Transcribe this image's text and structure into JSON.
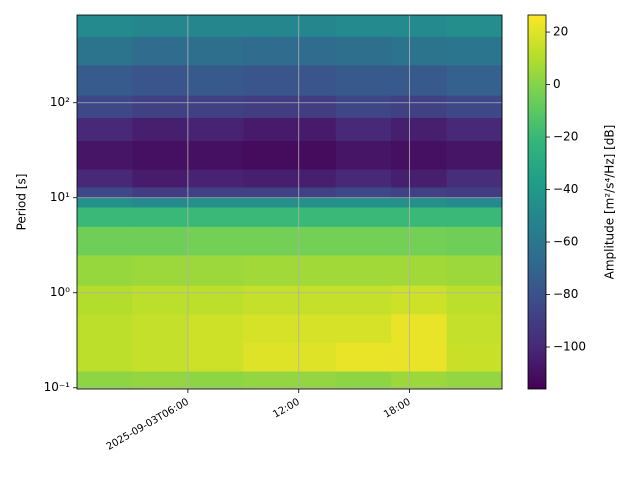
{
  "chart_data": {
    "type": "heatmap",
    "ylabel": "Period [s]",
    "colorbar_label": "Amplitude [m²/s⁴/Hz] [dB]",
    "x_bins": [
      "2025-09-03T00:00",
      "2025-09-03T03:00",
      "2025-09-03T06:00",
      "2025-09-03T09:00",
      "2025-09-03T12:00",
      "2025-09-03T14:00",
      "2025-09-03T17:00",
      "2025-09-03T20:00",
      "2025-09-03T23:00"
    ],
    "y_bins": [
      0.097,
      0.15,
      0.3,
      0.6,
      1.2,
      2.5,
      5,
      8,
      10,
      13,
      20,
      40,
      70,
      120,
      250,
      500,
      838
    ],
    "values": [
      [
        2,
        3,
        2,
        3,
        3,
        2,
        5,
        3
      ],
      [
        12,
        14,
        16,
        20,
        20,
        22,
        22,
        15
      ],
      [
        12,
        14,
        16,
        18,
        18,
        18,
        22,
        14
      ],
      [
        10,
        12,
        12,
        14,
        14,
        14,
        16,
        12
      ],
      [
        4,
        5,
        5,
        6,
        6,
        6,
        6,
        5
      ],
      [
        -5,
        -5,
        -4,
        -4,
        -4,
        -4,
        -4,
        -5
      ],
      [
        -20,
        -20,
        -20,
        -20,
        -20,
        -20,
        -20,
        -20
      ],
      [
        -45,
        -48,
        -45,
        -45,
        -45,
        -45,
        -45,
        -48
      ],
      [
        -85,
        -90,
        -88,
        -88,
        -88,
        -85,
        -88,
        -90
      ],
      [
        -100,
        -105,
        -102,
        -104,
        -104,
        -100,
        -104,
        -98
      ],
      [
        -108,
        -110,
        -110,
        -112,
        -112,
        -108,
        -110,
        -108
      ],
      [
        -100,
        -104,
        -102,
        -106,
        -106,
        -100,
        -104,
        -100
      ],
      [
        -85,
        -88,
        -88,
        -90,
        -90,
        -86,
        -88,
        -85
      ],
      [
        -75,
        -78,
        -76,
        -78,
        -78,
        -76,
        -76,
        -72
      ],
      [
        -62,
        -66,
        -64,
        -66,
        -66,
        -64,
        -62,
        -60
      ],
      [
        -48,
        -50,
        -50,
        -50,
        -50,
        -48,
        -48,
        -46
      ]
    ],
    "xlim": [
      "2025-09-03T00:00",
      "2025-09-03T23:00"
    ],
    "xticks": [
      {
        "value": "2025-09-03T06:00",
        "label": "2025-09-03T06:00"
      },
      {
        "value": "2025-09-03T12:00",
        "label": "12:00"
      },
      {
        "value": "2025-09-03T18:00",
        "label": "18:00"
      }
    ],
    "ylim": [
      0.097,
      838
    ],
    "y_log": true,
    "yticks": [
      {
        "value": 0.1,
        "label": "10⁻¹"
      },
      {
        "value": 1,
        "label": "10⁰"
      },
      {
        "value": 10,
        "label": "10¹"
      },
      {
        "value": 100,
        "label": "10²"
      }
    ],
    "grid": true,
    "clim": [
      -116,
      26.5
    ],
    "cticks": [
      {
        "value": -100,
        "label": "−100"
      },
      {
        "value": -80,
        "label": "−80"
      },
      {
        "value": -60,
        "label": "−60"
      },
      {
        "value": -40,
        "label": "−40"
      },
      {
        "value": -20,
        "label": "−20"
      },
      0,
      20
    ],
    "colormap": [
      "#440154",
      "#482878",
      "#3e4989",
      "#31688e",
      "#26828e",
      "#1f9e89",
      "#35b779",
      "#6ece58",
      "#b5de2b",
      "#fde725"
    ]
  }
}
